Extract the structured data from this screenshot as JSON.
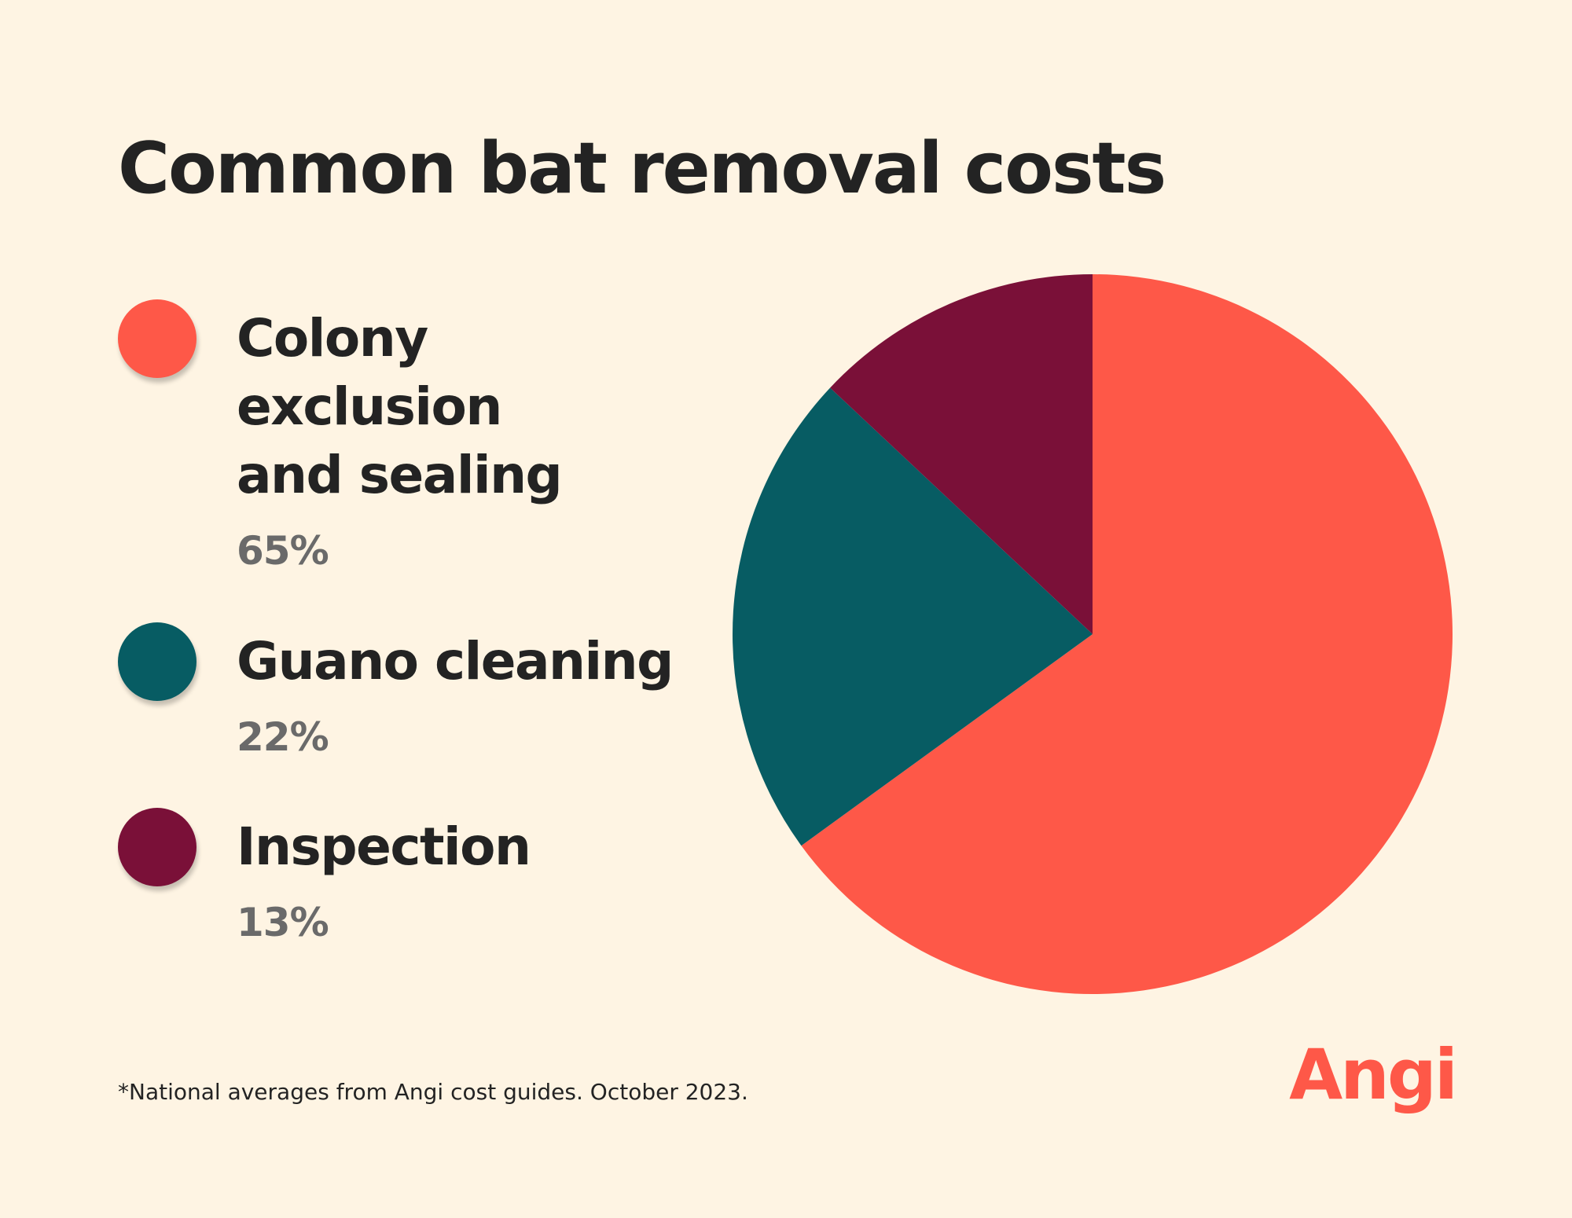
{
  "chart_data": {
    "type": "pie",
    "title": "Common bat removal costs",
    "categories": [
      "Colony exclusion and sealing",
      "Guano cleaning",
      "Inspection"
    ],
    "values": [
      65,
      22,
      13
    ],
    "value_labels": [
      "65%",
      "22%",
      "13%"
    ],
    "colors": [
      "#fe5848",
      "#075c63",
      "#7a1038"
    ],
    "footnote": "*National averages from Angi cost guides. October 2023.",
    "logo": "Angi"
  }
}
